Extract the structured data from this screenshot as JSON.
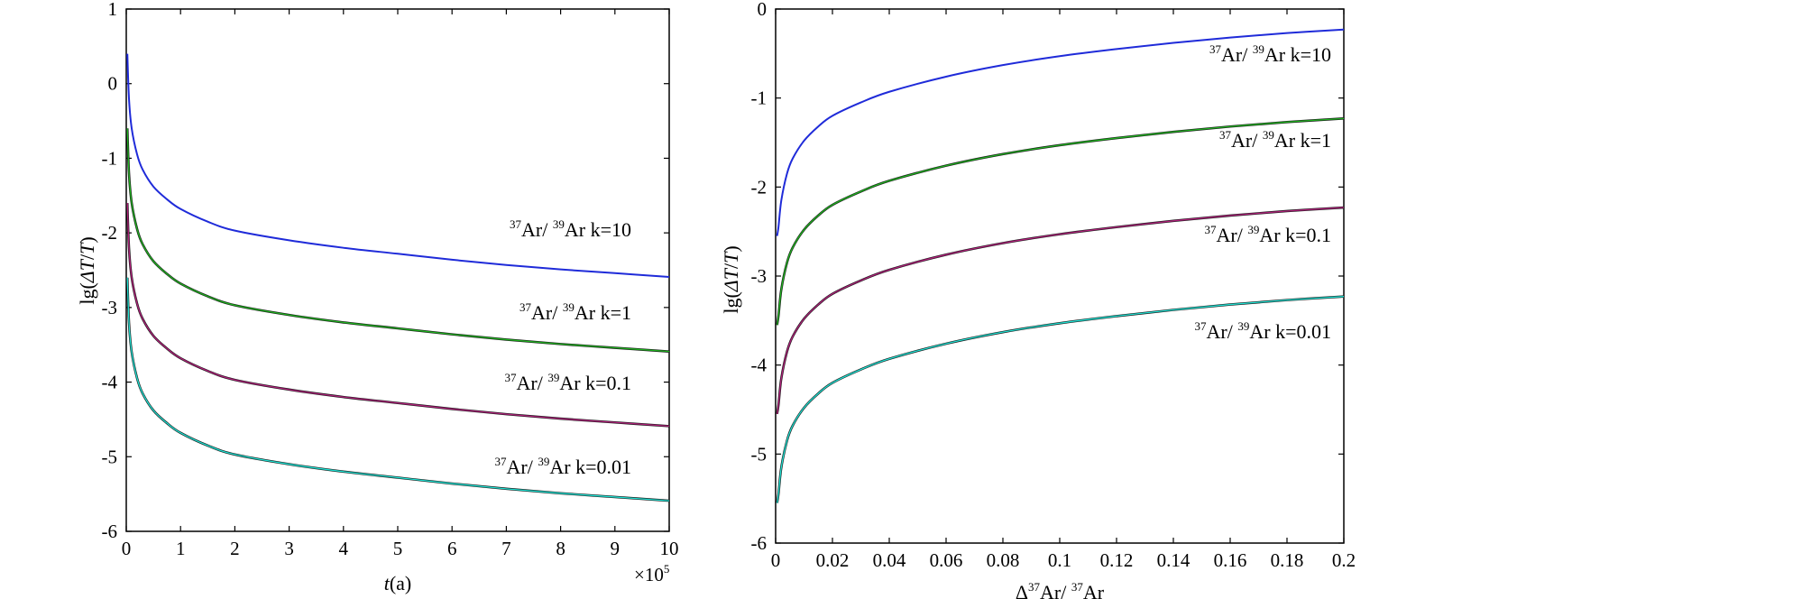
{
  "colors": {
    "k10": "#1f2bd9",
    "k1": "#1fb31f",
    "k01": "#b0207a",
    "k001": "#1fe0d2",
    "dark": "#1a1a1a",
    "axis": "#000000"
  },
  "chart_data": [
    {
      "type": "line",
      "xlabel_italic": "t",
      "xlabel_rest": "(a)",
      "ylabel": "lg(ΔT/T)",
      "xlim": [
        0,
        10
      ],
      "ylim": [
        -6,
        1
      ],
      "x_scale_label": "×10",
      "x_scale_exp": "5",
      "x_ticks": [
        "0",
        "1",
        "2",
        "3",
        "4",
        "5",
        "6",
        "7",
        "8",
        "9",
        "10"
      ],
      "y_ticks": [
        "1",
        "0",
        "-1",
        "-2",
        "-3",
        "-4",
        "-5",
        "-6"
      ],
      "x": [
        0.02,
        0.05,
        0.1,
        0.2,
        0.3,
        0.5,
        0.75,
        1,
        1.5,
        2,
        3,
        4,
        5,
        6,
        7,
        8,
        9,
        10
      ],
      "series": [
        {
          "name": "k=10",
          "label_pre": "37",
          "label_mid": "Ar/ ",
          "label_sup2": "39",
          "label_post": "Ar k=10",
          "values": [
            0.4,
            -0.2,
            -0.6,
            -0.95,
            -1.15,
            -1.38,
            -1.55,
            -1.68,
            -1.85,
            -1.97,
            -2.1,
            -2.2,
            -2.28,
            -2.36,
            -2.43,
            -2.49,
            -2.54,
            -2.59
          ]
        },
        {
          "name": "k=1",
          "label_pre": "37",
          "label_mid": "Ar/ ",
          "label_sup2": "39",
          "label_post": "Ar k=1",
          "values": [
            -0.6,
            -1.2,
            -1.6,
            -1.95,
            -2.15,
            -2.38,
            -2.55,
            -2.68,
            -2.85,
            -2.97,
            -3.1,
            -3.2,
            -3.28,
            -3.36,
            -3.43,
            -3.49,
            -3.54,
            -3.59
          ]
        },
        {
          "name": "k=0.1",
          "label_pre": "37",
          "label_mid": "Ar/ ",
          "label_sup2": "39",
          "label_post": "Ar k=0.1",
          "values": [
            -1.6,
            -2.2,
            -2.6,
            -2.95,
            -3.15,
            -3.38,
            -3.55,
            -3.68,
            -3.85,
            -3.97,
            -4.1,
            -4.2,
            -4.28,
            -4.36,
            -4.43,
            -4.49,
            -4.54,
            -4.59
          ]
        },
        {
          "name": "k=0.01",
          "label_pre": "37",
          "label_mid": "Ar/ ",
          "label_sup2": "39",
          "label_post": "Ar k=0.01",
          "values": [
            -2.6,
            -3.2,
            -3.6,
            -3.95,
            -4.15,
            -4.38,
            -4.55,
            -4.68,
            -4.85,
            -4.97,
            -5.1,
            -5.2,
            -5.28,
            -5.36,
            -5.43,
            -5.49,
            -5.54,
            -5.59
          ]
        }
      ]
    },
    {
      "type": "line",
      "xlabel_delta": "Δ",
      "xlabel_sup1": "37",
      "xlabel_mid": "Ar/ ",
      "xlabel_sup2": "37",
      "xlabel_post": "Ar",
      "ylabel": "lg(ΔT/T)",
      "xlim": [
        0,
        0.2
      ],
      "ylim": [
        -6,
        0
      ],
      "x_ticks": [
        "0",
        "0.02",
        "0.04",
        "0.06",
        "0.08",
        "0.1",
        "0.12",
        "0.14",
        "0.16",
        "0.18",
        "0.2"
      ],
      "y_ticks": [
        "0",
        "-1",
        "-2",
        "-3",
        "-4",
        "-5",
        "-6"
      ],
      "x": [
        0.0005,
        0.001,
        0.002,
        0.004,
        0.006,
        0.01,
        0.015,
        0.02,
        0.03,
        0.04,
        0.06,
        0.08,
        0.1,
        0.12,
        0.14,
        0.16,
        0.18,
        0.2
      ],
      "series": [
        {
          "name": "k=10",
          "label_pre": "37",
          "label_mid": "Ar/ ",
          "label_sup2": "39",
          "label_post": "Ar k=10",
          "values": [
            -2.55,
            -2.45,
            -2.15,
            -1.85,
            -1.68,
            -1.48,
            -1.32,
            -1.2,
            -1.05,
            -0.93,
            -0.76,
            -0.63,
            -0.53,
            -0.45,
            -0.38,
            -0.32,
            -0.27,
            -0.23
          ]
        },
        {
          "name": "k=1",
          "label_pre": "37",
          "label_mid": "Ar/ ",
          "label_sup2": "39",
          "label_post": "Ar k=1",
          "values": [
            -3.55,
            -3.45,
            -3.15,
            -2.85,
            -2.68,
            -2.48,
            -2.32,
            -2.2,
            -2.05,
            -1.93,
            -1.76,
            -1.63,
            -1.53,
            -1.45,
            -1.38,
            -1.32,
            -1.27,
            -1.23
          ]
        },
        {
          "name": "k=0.1",
          "label_pre": "37",
          "label_mid": "Ar/ ",
          "label_sup2": "39",
          "label_post": "Ar k=0.1",
          "values": [
            -4.55,
            -4.45,
            -4.15,
            -3.85,
            -3.68,
            -3.48,
            -3.32,
            -3.2,
            -3.05,
            -2.93,
            -2.76,
            -2.63,
            -2.53,
            -2.45,
            -2.38,
            -2.32,
            -2.27,
            -2.23
          ]
        },
        {
          "name": "k=0.01",
          "label_pre": "37",
          "label_mid": "Ar/ ",
          "label_sup2": "39",
          "label_post": "Ar k=0.01",
          "values": [
            -5.55,
            -5.45,
            -5.15,
            -4.85,
            -4.68,
            -4.48,
            -4.32,
            -4.2,
            -4.05,
            -3.93,
            -3.76,
            -3.63,
            -3.53,
            -3.45,
            -3.38,
            -3.32,
            -3.27,
            -3.23
          ]
        }
      ]
    }
  ]
}
